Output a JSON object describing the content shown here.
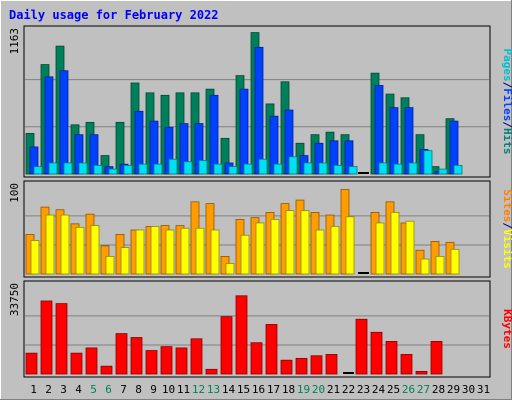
{
  "chart_data": {
    "type": "bar",
    "title": "Daily usage for February 2022",
    "days": [
      "1",
      "2",
      "3",
      "4",
      "5",
      "6",
      "7",
      "8",
      "9",
      "10",
      "11",
      "12",
      "13",
      "14",
      "15",
      "16",
      "17",
      "18",
      "19",
      "20",
      "21",
      "22",
      "23",
      "24",
      "25",
      "26",
      "27",
      "28",
      "29",
      "30",
      "31"
    ],
    "weekend_days": [
      5,
      6,
      12,
      13,
      19,
      20,
      26,
      27
    ],
    "panels": [
      {
        "name": "hits-files-pages",
        "ymax": 1163,
        "ymax_label": "1163",
        "axis_label_parts": [
          {
            "text": "Pages",
            "color": "#00c0d0"
          },
          {
            "text": "/",
            "color": "#000080"
          },
          {
            "text": "Files",
            "color": "#0040ff"
          },
          {
            "text": "/",
            "color": "#000080"
          },
          {
            "text": "Hits",
            "color": "#008080"
          }
        ],
        "series": [
          {
            "name": "Hits",
            "color": "#00805a",
            "values": [
              330,
              890,
              1040,
              400,
              420,
              150,
              420,
              740,
              660,
              640,
              660,
              660,
              690,
              290,
              800,
              1150,
              570,
              750,
              250,
              320,
              340,
              320,
              0,
              820,
              650,
              620,
              320,
              60,
              450,
              0,
              0
            ]
          },
          {
            "name": "Files",
            "color": "#0040ff",
            "values": [
              220,
              790,
              840,
              320,
              320,
              60,
              80,
              510,
              430,
              380,
              410,
              410,
              640,
              90,
              690,
              1030,
              470,
              520,
              150,
              250,
              270,
              270,
              0,
              720,
              540,
              540,
              200,
              20,
              430,
              0,
              0
            ]
          },
          {
            "name": "Pages",
            "color": "#00e0f0",
            "values": [
              60,
              90,
              90,
              90,
              70,
              40,
              70,
              80,
              80,
              120,
              100,
              110,
              80,
              60,
              80,
              120,
              80,
              140,
              90,
              90,
              70,
              60,
              0,
              90,
              80,
              90,
              190,
              40,
              70,
              0,
              0
            ]
          }
        ]
      },
      {
        "name": "visits-sites",
        "ymax": 100,
        "ymax_label": "100",
        "axis_label_parts": [
          {
            "text": "Sites",
            "color": "#ff8000"
          },
          {
            "text": "/",
            "color": "#000080"
          },
          {
            "text": "Visits",
            "color": "#ffff00"
          }
        ],
        "series": [
          {
            "name": "Visits",
            "color": "#ff9c00",
            "values": [
              45,
              76,
              73,
              57,
              68,
              32,
              45,
              50,
              54,
              55,
              55,
              82,
              80,
              20,
              62,
              64,
              70,
              80,
              84,
              70,
              67,
              96,
              0,
              70,
              82,
              58,
              27,
              37,
              36,
              0,
              0
            ]
          },
          {
            "name": "Sites",
            "color": "#ffff00",
            "values": [
              38,
              67,
              67,
              53,
              55,
              20,
              30,
              50,
              54,
              50,
              52,
              52,
              50,
              12,
              44,
              58,
              62,
              72,
              72,
              50,
              54,
              65,
              0,
              58,
              70,
              60,
              17,
              20,
              28,
              0,
              0
            ]
          }
        ]
      },
      {
        "name": "kbytes",
        "ymax": 33750,
        "ymax_label": "33750",
        "axis_label_parts": [
          {
            "text": "KBytes",
            "color": "#ff0000"
          }
        ],
        "series": [
          {
            "name": "KBytes",
            "color": "#ff0000",
            "values": [
              8000,
              28000,
              27000,
              8000,
              10000,
              3000,
              15500,
              14000,
              9000,
              10500,
              10000,
              13500,
              1800,
              22000,
              30000,
              12000,
              19000,
              5300,
              6000,
              7000,
              7500,
              0,
              21000,
              16000,
              12500,
              7500,
              1000,
              12500,
              0,
              0,
              0
            ]
          }
        ]
      }
    ]
  }
}
